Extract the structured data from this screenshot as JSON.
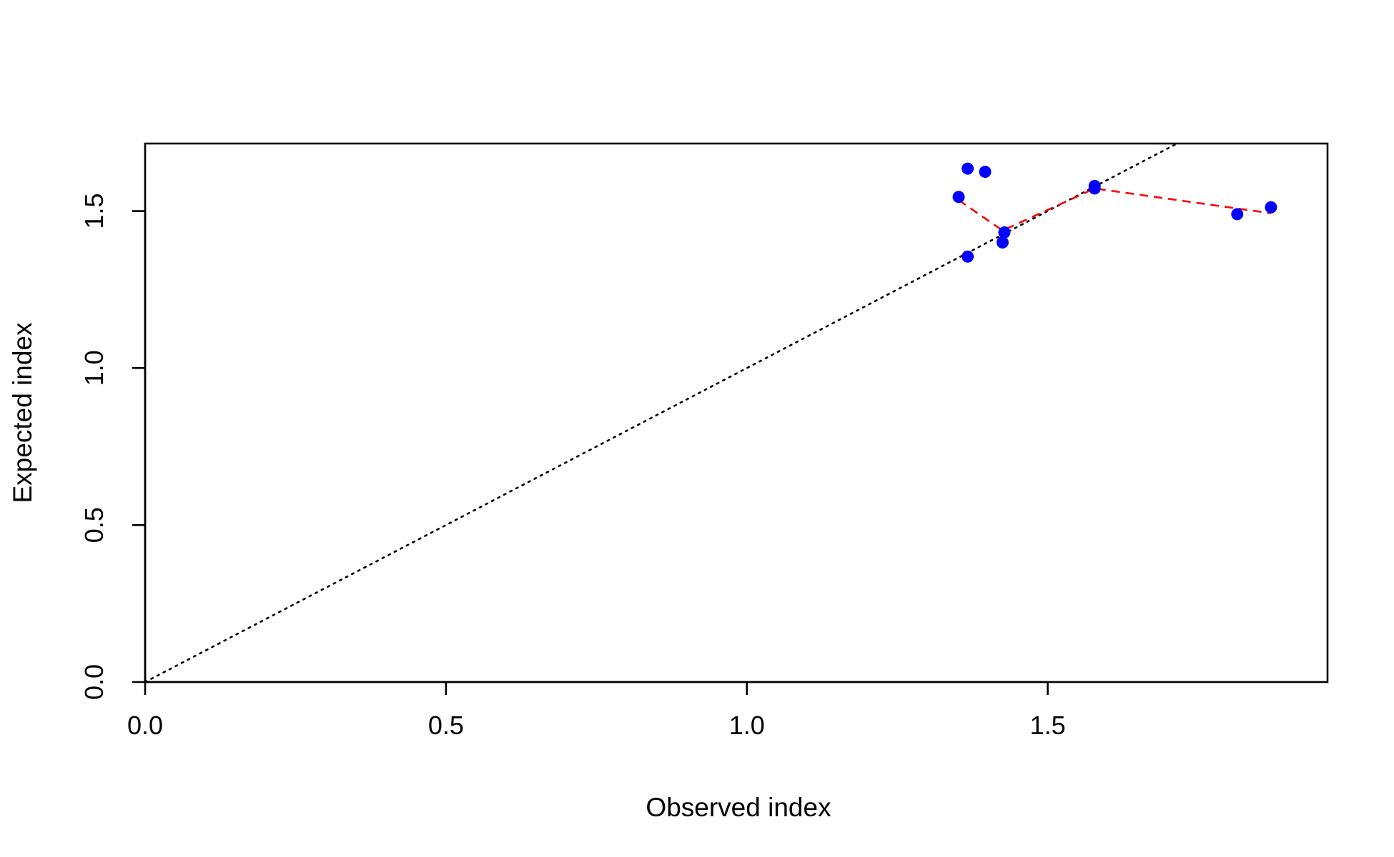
{
  "chart_data": {
    "type": "scatter",
    "title": "",
    "xlabel": "Observed index",
    "ylabel": "Expected index",
    "xlim": [
      0,
      1.965
    ],
    "ylim": [
      0,
      1.715
    ],
    "x_ticks": [
      "0.0",
      "0.5",
      "1.0",
      "1.5"
    ],
    "y_ticks": [
      "0.0",
      "0.5",
      "1.0",
      "1.5"
    ],
    "grid": false,
    "legend": "none",
    "points": {
      "color": "#0000ff",
      "x": [
        1.352,
        1.367,
        1.367,
        1.396,
        1.425,
        1.428,
        1.578,
        1.578,
        1.815,
        1.871
      ],
      "y": [
        1.545,
        1.635,
        1.355,
        1.625,
        1.4,
        1.432,
        1.58,
        1.572,
        1.49,
        1.512
      ]
    },
    "fit_line": {
      "color": "#ff0000",
      "style": "dashed",
      "x": [
        1.352,
        1.425,
        1.578,
        1.871
      ],
      "y": [
        1.535,
        1.438,
        1.572,
        1.493
      ]
    },
    "reference_line": {
      "color": "#000000",
      "style": "dotted",
      "slope": 1,
      "intercept": 0
    }
  }
}
